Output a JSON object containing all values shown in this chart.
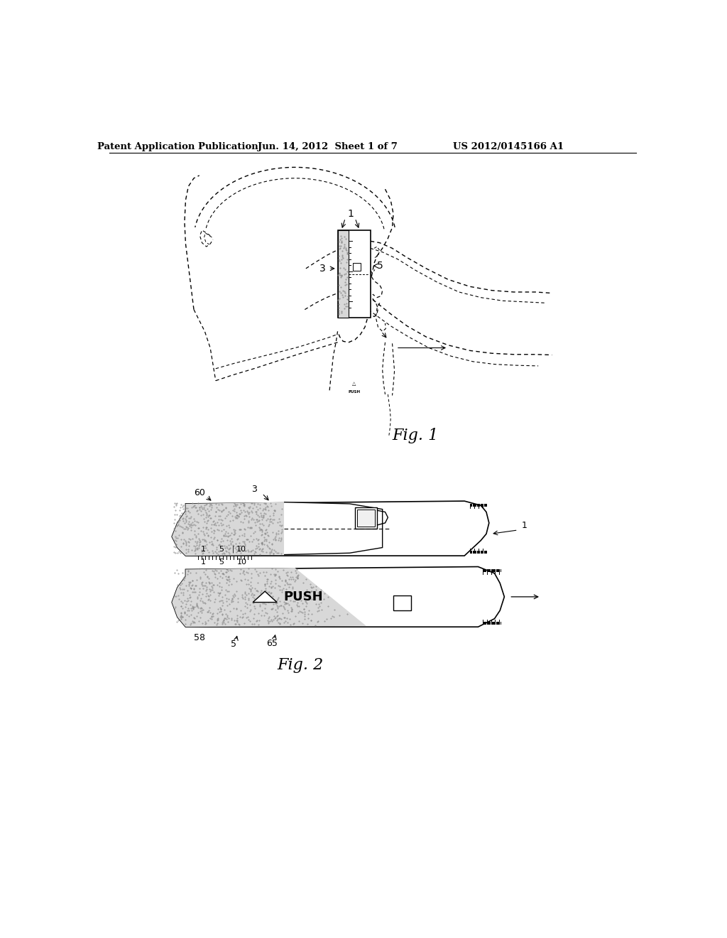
{
  "bg_color": "#ffffff",
  "header_left": "Patent Application Publication",
  "header_mid": "Jun. 14, 2012  Sheet 1 of 7",
  "header_right": "US 2012/0145166 A1",
  "fig1_label": "Fig. 1",
  "fig2_label": "Fig. 2"
}
